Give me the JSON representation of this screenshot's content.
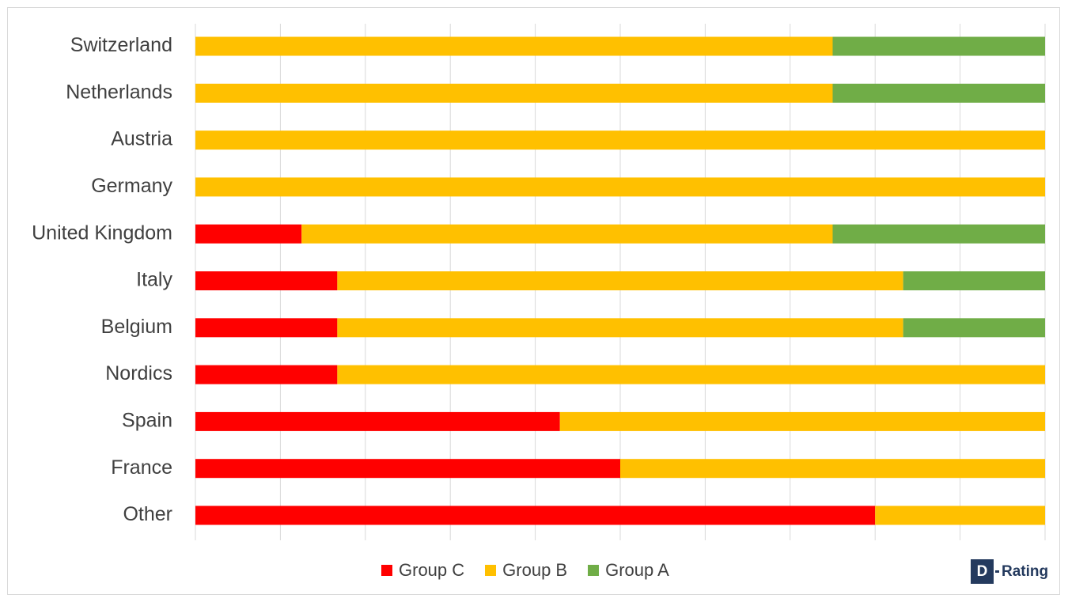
{
  "chart_data": {
    "type": "bar",
    "orientation": "horizontal",
    "stacked": true,
    "normalized": true,
    "categories": [
      "Switzerland",
      "Netherlands",
      "Austria",
      "Germany",
      "United Kingdom",
      "Italy",
      "Belgium",
      "Nordics",
      "Spain",
      "France",
      "Other"
    ],
    "series": [
      {
        "name": "Group C",
        "color": "#ff0000",
        "values": [
          0,
          0,
          0,
          0,
          0.125,
          0.167,
          0.167,
          0.167,
          0.429,
          0.5,
          0.8
        ]
      },
      {
        "name": "Group B",
        "color": "#ffc000",
        "values": [
          0.75,
          0.75,
          1,
          1,
          0.625,
          0.666,
          0.666,
          0.833,
          0.571,
          0.5,
          0.2
        ]
      },
      {
        "name": "Group A",
        "color": "#70ad47",
        "values": [
          0.25,
          0.25,
          0,
          0,
          0.25,
          0.167,
          0.167,
          0,
          0,
          0,
          0
        ]
      }
    ],
    "xlim": [
      0,
      1
    ],
    "grid": true,
    "legend_position": "bottom"
  },
  "colors": {
    "gridline": "#d9d9d9",
    "frame": "#d9d9d9",
    "text": "#404040"
  },
  "logo": {
    "letter": "D",
    "text": "Rating",
    "color": "#243a5e"
  }
}
